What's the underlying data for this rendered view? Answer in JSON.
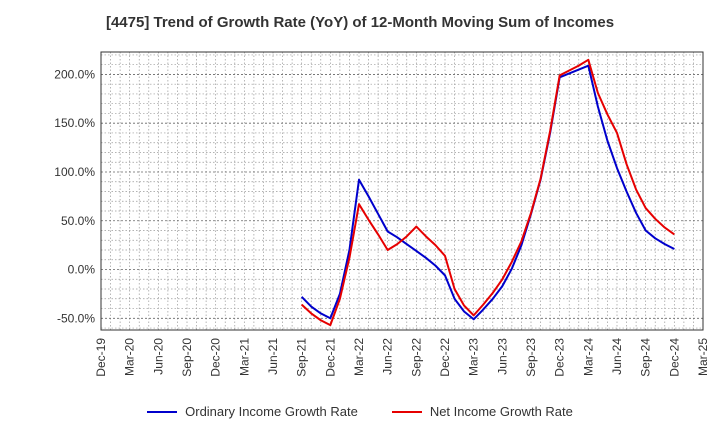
{
  "chart_data": {
    "type": "line",
    "title": "[4475]  Trend of Growth Rate (YoY) of 12-Month Moving Sum of Incomes",
    "xlabel": "",
    "ylabel": "",
    "x_ticks": [
      "Dec-19",
      "Mar-20",
      "Jun-20",
      "Sep-20",
      "Dec-20",
      "Mar-21",
      "Jun-21",
      "Sep-21",
      "Dec-21",
      "Mar-22",
      "Jun-22",
      "Sep-22",
      "Dec-22",
      "Mar-23",
      "Jun-23",
      "Sep-23",
      "Dec-23",
      "Mar-24",
      "Jun-24",
      "Sep-24",
      "Dec-24",
      "Mar-25"
    ],
    "y_ticks": [
      200,
      150,
      100,
      50,
      0,
      -50
    ],
    "y_tick_labels": [
      "200.0%",
      "150.0%",
      "100.0%",
      "50.0%",
      "0.0%",
      "-50.0%"
    ],
    "ylim": [
      -62,
      223
    ],
    "grid": true,
    "legend_position": "bottom",
    "series": [
      {
        "name": "Ordinary Income Growth Rate",
        "color": "#0000cc",
        "points": [
          [
            "Sep-21",
            -28
          ],
          [
            "Oct-21",
            -38
          ],
          [
            "Nov-21",
            -45
          ],
          [
            "Dec-21",
            -50
          ],
          [
            "Jan-22",
            -25
          ],
          [
            "Feb-22",
            20
          ],
          [
            "Mar-22",
            92
          ],
          [
            "Apr-22",
            75
          ],
          [
            "May-22",
            57
          ],
          [
            "Jun-22",
            39
          ],
          [
            "Jul-22",
            33
          ],
          [
            "Aug-22",
            26
          ],
          [
            "Sep-22",
            19
          ],
          [
            "Oct-22",
            12
          ],
          [
            "Nov-22",
            4
          ],
          [
            "Dec-22",
            -6
          ],
          [
            "Jan-23",
            -30
          ],
          [
            "Feb-23",
            -43
          ],
          [
            "Mar-23",
            -51
          ],
          [
            "Apr-23",
            -41
          ],
          [
            "May-23",
            -30
          ],
          [
            "Jun-23",
            -17
          ],
          [
            "Jul-23",
            1
          ],
          [
            "Aug-23",
            25
          ],
          [
            "Sep-23",
            57
          ],
          [
            "Oct-23",
            92
          ],
          [
            "Nov-23",
            140
          ],
          [
            "Dec-23",
            197
          ],
          [
            "Jan-24",
            201
          ],
          [
            "Feb-24",
            205
          ],
          [
            "Mar-24",
            209
          ],
          [
            "Apr-24",
            167
          ],
          [
            "May-24",
            132
          ],
          [
            "Jun-24",
            104
          ],
          [
            "Jul-24",
            80
          ],
          [
            "Aug-24",
            58
          ],
          [
            "Sep-24",
            40
          ],
          [
            "Oct-24",
            32
          ],
          [
            "Nov-24",
            26
          ],
          [
            "Dec-24",
            21
          ]
        ]
      },
      {
        "name": "Net Income Growth Rate",
        "color": "#e60000",
        "points": [
          [
            "Sep-21",
            -36
          ],
          [
            "Oct-21",
            -45
          ],
          [
            "Nov-21",
            -52
          ],
          [
            "Dec-21",
            -57
          ],
          [
            "Jan-22",
            -30
          ],
          [
            "Feb-22",
            12
          ],
          [
            "Mar-22",
            67
          ],
          [
            "Apr-22",
            51
          ],
          [
            "May-22",
            36
          ],
          [
            "Jun-22",
            20
          ],
          [
            "Jul-22",
            26
          ],
          [
            "Aug-22",
            34
          ],
          [
            "Sep-22",
            44
          ],
          [
            "Oct-22",
            34
          ],
          [
            "Nov-22",
            25
          ],
          [
            "Dec-22",
            14
          ],
          [
            "Jan-23",
            -20
          ],
          [
            "Feb-23",
            -37
          ],
          [
            "Mar-23",
            -47
          ],
          [
            "Apr-23",
            -36
          ],
          [
            "May-23",
            -24
          ],
          [
            "Jun-23",
            -10
          ],
          [
            "Jul-23",
            8
          ],
          [
            "Aug-23",
            29
          ],
          [
            "Sep-23",
            58
          ],
          [
            "Oct-23",
            93
          ],
          [
            "Nov-23",
            142
          ],
          [
            "Dec-23",
            199
          ],
          [
            "Jan-24",
            204
          ],
          [
            "Feb-24",
            209
          ],
          [
            "Mar-24",
            215
          ],
          [
            "Apr-24",
            181
          ],
          [
            "May-24",
            159
          ],
          [
            "Jun-24",
            140
          ],
          [
            "Jul-24",
            108
          ],
          [
            "Aug-24",
            82
          ],
          [
            "Sep-24",
            63
          ],
          [
            "Oct-24",
            52
          ],
          [
            "Nov-24",
            43
          ],
          [
            "Dec-24",
            36
          ]
        ]
      }
    ]
  }
}
